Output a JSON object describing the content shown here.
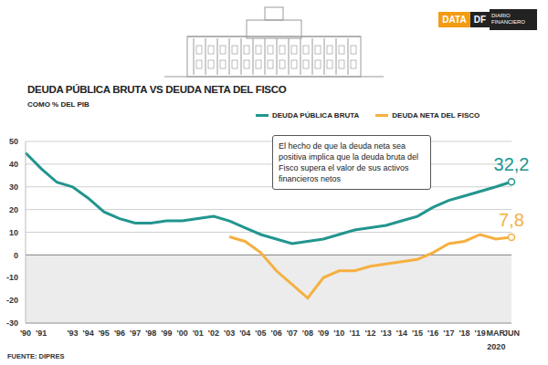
{
  "chart_data": {
    "type": "line",
    "title": "DEUDA PÚBLICA BRUTA VS DEUDA NETA DEL FISCO",
    "subtitle": "COMO % DEL PIB",
    "source": "FUENTE: DIPRES",
    "brand": [
      "DATA",
      "DF",
      "DIARIO FINANCIERO"
    ],
    "annotation": "El hecho de que la deuda neta sea positiva implica que la deuda bruta del Fisco supera el valor de sus activos financieros netos",
    "categories": [
      "'90",
      "'91",
      null,
      "'93",
      "'94",
      "'95",
      "'96",
      "'97",
      "'98",
      "'99",
      "'00",
      "'01",
      "'02",
      "'03",
      "'04",
      "'05",
      "'06",
      "'07",
      "'08",
      "'09",
      "'10",
      "'11",
      "'12",
      "'13",
      "'14",
      "'15",
      "'16",
      "'17",
      "'18",
      "'19",
      "MAR",
      "JUN"
    ],
    "x_group": {
      "label": "2020",
      "categories": [
        "MAR",
        "JUN"
      ]
    },
    "series": [
      {
        "name": "DEUDA PÚBLICA BRUTA",
        "color": "#22958f",
        "values": [
          45,
          38,
          32,
          30,
          25,
          19,
          16,
          14,
          14,
          15,
          15,
          16,
          17,
          15,
          12,
          9,
          7,
          5,
          6,
          7,
          9,
          11,
          12,
          13,
          15,
          17,
          21,
          24,
          26,
          28,
          30,
          32.2
        ],
        "value_labels": [
          null,
          null,
          null,
          null,
          null,
          null,
          null,
          null,
          null,
          null,
          null,
          null,
          null,
          null,
          null,
          null,
          null,
          null,
          null,
          null,
          null,
          null,
          null,
          null,
          null,
          null,
          null,
          null,
          null,
          null,
          null,
          "32,2"
        ]
      },
      {
        "name": "DEUDA NETA DEL FISCO",
        "color": "#f5b041",
        "values": [
          null,
          null,
          null,
          null,
          null,
          null,
          null,
          null,
          null,
          null,
          null,
          null,
          null,
          8,
          6,
          1,
          -7,
          -13,
          -19,
          -10,
          -7,
          -7,
          -5,
          -4,
          -3,
          -2,
          1,
          5,
          6,
          9,
          7,
          7.8
        ],
        "value_labels": [
          null,
          null,
          null,
          null,
          null,
          null,
          null,
          null,
          null,
          null,
          null,
          null,
          null,
          null,
          null,
          null,
          null,
          null,
          null,
          null,
          null,
          null,
          null,
          null,
          null,
          null,
          null,
          null,
          null,
          null,
          null,
          "7,8"
        ]
      }
    ],
    "ylim": [
      -30,
      50
    ],
    "yticks": [
      -30,
      -20,
      -10,
      0,
      10,
      20,
      30,
      40,
      50
    ],
    "grid": true,
    "legend": "top"
  }
}
